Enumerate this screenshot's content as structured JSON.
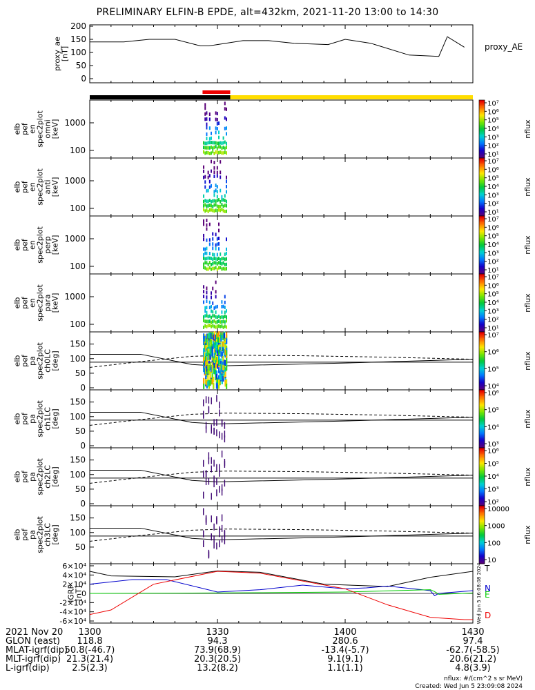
{
  "title": "PRELIMINARY ELFIN-B EPDE, alt=432km, 2021-11-20 13:00 to 14:30",
  "chart_data": [
    {
      "type": "line",
      "panel": "proxy_ae",
      "ylabel_lines": [
        "proxy_ae",
        "[nT]"
      ],
      "ylim": [
        0,
        200
      ],
      "yticks": [
        "0",
        "50",
        "100",
        "150",
        "200"
      ],
      "legend": "proxy_AE",
      "x_minutes": [
        0,
        8,
        14,
        20,
        26,
        28,
        36,
        42,
        48,
        56,
        60,
        66,
        68,
        75,
        82,
        84,
        88
      ],
      "values": [
        140,
        140,
        150,
        150,
        125,
        125,
        145,
        145,
        135,
        130,
        150,
        135,
        125,
        90,
        85,
        160,
        120
      ]
    },
    {
      "type": "heatmap",
      "panel": "omni",
      "ylabel_lines": [
        "elb",
        "pef",
        "en",
        "spec2plot",
        "omni",
        "[keV]"
      ],
      "yticks": [
        "100",
        "1000"
      ],
      "colorbar": {
        "label": "nflux",
        "ticks": [
          "10¹",
          "10²",
          "10³",
          "10⁴",
          "10⁵",
          "10⁶",
          "10⁷"
        ]
      }
    },
    {
      "type": "heatmap",
      "panel": "anti",
      "ylabel_lines": [
        "elb",
        "pef",
        "en",
        "spec2plot",
        "anti",
        "[keV]"
      ],
      "yticks": [
        "100",
        "1000"
      ],
      "colorbar": {
        "label": "nflux",
        "ticks": [
          "10¹",
          "10²",
          "10³",
          "10⁴",
          "10⁵",
          "10⁶",
          "10⁷"
        ]
      }
    },
    {
      "type": "heatmap",
      "panel": "perp",
      "ylabel_lines": [
        "elb",
        "pef",
        "en",
        "spec2plot",
        "perp",
        "[keV]"
      ],
      "yticks": [
        "100",
        "1000"
      ],
      "colorbar": {
        "label": "nflux",
        "ticks": [
          "10¹",
          "10²",
          "10³",
          "10⁴",
          "10⁵",
          "10⁶",
          "10⁷"
        ]
      }
    },
    {
      "type": "heatmap",
      "panel": "para",
      "ylabel_lines": [
        "elb",
        "pef",
        "en",
        "spec2plot",
        "para",
        "[keV]"
      ],
      "yticks": [
        "100",
        "1000"
      ],
      "colorbar": {
        "label": "nflux",
        "ticks": [
          "10¹",
          "10²",
          "10³",
          "10⁴",
          "10⁵",
          "10⁶",
          "10⁷"
        ]
      }
    },
    {
      "type": "heatmap",
      "panel": "ch0LC",
      "ylabel_lines": [
        "elb",
        "pef",
        "pa",
        "spec2plot",
        "ch0LC",
        "[deg]"
      ],
      "ylim": [
        0,
        180
      ],
      "yticks": [
        "0",
        "50",
        "100",
        "150"
      ],
      "colorbar": {
        "label": "nflux",
        "ticks": [
          "10⁴",
          "10⁵",
          "10⁶",
          "10⁷"
        ]
      }
    },
    {
      "type": "heatmap",
      "panel": "ch1LC",
      "ylabel_lines": [
        "elb",
        "pef",
        "pa",
        "spec2plot",
        "ch1LC",
        "[deg]"
      ],
      "ylim": [
        0,
        180
      ],
      "yticks": [
        "0",
        "50",
        "100",
        "150"
      ],
      "colorbar": {
        "label": "nflux",
        "ticks": [
          "10³",
          "10⁴",
          "10⁵",
          "10⁶"
        ]
      }
    },
    {
      "type": "heatmap",
      "panel": "ch2LC",
      "ylabel_lines": [
        "elb",
        "pef",
        "pa",
        "spec2plot",
        "ch2LC",
        "[deg]"
      ],
      "ylim": [
        0,
        180
      ],
      "yticks": [
        "0",
        "50",
        "100",
        "150"
      ],
      "colorbar": {
        "label": "nflux",
        "ticks": [
          "10²",
          "10³",
          "10⁴",
          "10⁵",
          "10⁶"
        ]
      }
    },
    {
      "type": "heatmap",
      "panel": "ch3LC",
      "ylabel_lines": [
        "elb",
        "pef",
        "pa",
        "spec2plot",
        "ch3LC",
        "[deg]"
      ],
      "ylim": [
        0,
        180
      ],
      "yticks": [
        "50",
        "100",
        "150"
      ],
      "colorbar": {
        "label": "nflux",
        "ticks": [
          "10",
          "100",
          "1000",
          "10000"
        ]
      }
    },
    {
      "type": "line",
      "panel": "IGRF",
      "ylabel_lines": [
        "IGRF",
        "[nT]"
      ],
      "ylim": [
        -60000,
        60000
      ],
      "yticks": [
        "-6×10⁴",
        "-4×10⁴",
        "-2×10⁴",
        "0",
        "2×10⁴",
        "4×10⁴",
        "6×10⁴"
      ],
      "side_note": "Wed Jun  5 16:08:08 2024",
      "series": [
        {
          "name": "T",
          "color": "#000000",
          "x_minutes": [
            0,
            5,
            20,
            30,
            40,
            55,
            70,
            80,
            90
          ],
          "values": [
            48000,
            38000,
            36000,
            49000,
            46000,
            20000,
            15000,
            35000,
            48000
          ]
        },
        {
          "name": "N",
          "color": "#0000cc",
          "x_minutes": [
            0,
            10,
            18,
            30,
            40,
            50,
            60,
            65,
            70,
            80,
            81,
            82,
            90
          ],
          "values": [
            20000,
            30000,
            30000,
            3000,
            8000,
            18000,
            10000,
            12000,
            16000,
            6000,
            -5000,
            0,
            6000
          ]
        },
        {
          "name": "E",
          "color": "#00cc00",
          "x_minutes": [
            0,
            20,
            40,
            60,
            80,
            81,
            82,
            90
          ],
          "values": [
            0,
            500,
            1500,
            3000,
            8000,
            4000,
            -2000,
            1000
          ]
        },
        {
          "name": "D",
          "color": "#ee0000",
          "x_minutes": [
            0,
            5,
            15,
            30,
            40,
            60,
            70,
            80,
            88,
            90
          ],
          "values": [
            -46000,
            -36000,
            20000,
            48000,
            44000,
            10000,
            -25000,
            -52000,
            -57000,
            -57000
          ]
        }
      ]
    }
  ],
  "time_axis": {
    "date_label": "2021 Nov 20",
    "ticks": [
      {
        "label": "1300",
        "minute": 0
      },
      {
        "label": "1330",
        "minute": 30
      },
      {
        "label": "1400",
        "minute": 60
      },
      {
        "label": "1430",
        "minute": 90
      }
    ]
  },
  "orbit_rows": [
    {
      "label": "GLON (east)",
      "values": [
        "118.8",
        "94.3",
        "280.6",
        "97.4"
      ]
    },
    {
      "label": "MLAT-igrf(dip)",
      "values": [
        "50.8(-46.7)",
        "73.9(68.9)",
        "-13.4(-5.7)",
        "-62.7(-58.5)"
      ]
    },
    {
      "label": "MLT-igrf(dip)",
      "values": [
        "21.3(21.4)",
        "20.3(20.5)",
        "9.1(9.1)",
        "20.6(21.2)"
      ]
    },
    {
      "label": "L-igrf(dip)",
      "values": [
        "2.5(2.3)",
        "13.2(8.2)",
        "1.1(1.1)",
        "4.8(3.9)"
      ]
    }
  ],
  "footer": {
    "units": "nflux: #/(cm^2 s sr MeV)",
    "created": "Created: Wed Jun  5 23:09:08 2024"
  },
  "bar_colors": {
    "black": "#000000",
    "yellow": "#ffdd00",
    "red": "#ee0000"
  }
}
